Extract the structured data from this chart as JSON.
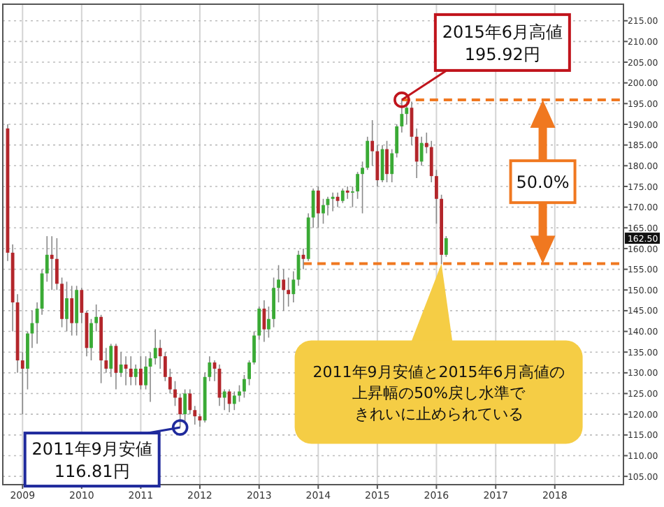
{
  "chart_data": {
    "type": "candlestick",
    "x": [
      "2008-10",
      "2008-11",
      "2008-12",
      "2009-01",
      "2009-02",
      "2009-03",
      "2009-04",
      "2009-05",
      "2009-06",
      "2009-07",
      "2009-08",
      "2009-09",
      "2009-10",
      "2009-11",
      "2009-12",
      "2010-01",
      "2010-02",
      "2010-03",
      "2010-04",
      "2010-05",
      "2010-06",
      "2010-07",
      "2010-08",
      "2010-09",
      "2010-10",
      "2010-11",
      "2010-12",
      "2011-01",
      "2011-02",
      "2011-03",
      "2011-04",
      "2011-05",
      "2011-06",
      "2011-07",
      "2011-08",
      "2011-09",
      "2011-10",
      "2011-11",
      "2011-12",
      "2012-01",
      "2012-02",
      "2012-03",
      "2012-04",
      "2012-05",
      "2012-06",
      "2012-07",
      "2012-08",
      "2012-09",
      "2012-10",
      "2012-11",
      "2012-12",
      "2013-01",
      "2013-02",
      "2013-03",
      "2013-04",
      "2013-05",
      "2013-06",
      "2013-07",
      "2013-08",
      "2013-09",
      "2013-10",
      "2013-11",
      "2013-12",
      "2014-01",
      "2014-02",
      "2014-03",
      "2014-04",
      "2014-05",
      "2014-06",
      "2014-07",
      "2014-08",
      "2014-09",
      "2014-10",
      "2014-11",
      "2014-12",
      "2015-01",
      "2015-02",
      "2015-03",
      "2015-04",
      "2015-05",
      "2015-06",
      "2015-07",
      "2015-08",
      "2015-09",
      "2015-10",
      "2015-11",
      "2015-12",
      "2016-01",
      "2016-02",
      "2016-03"
    ],
    "ohlc": [
      [
        189,
        190,
        157,
        159
      ],
      [
        159,
        161,
        140,
        147
      ],
      [
        147,
        149,
        130,
        133
      ],
      [
        133,
        135,
        120,
        131
      ],
      [
        131,
        140,
        126,
        139.5
      ],
      [
        139.5,
        145,
        136,
        142
      ],
      [
        142,
        147,
        137,
        145.5
      ],
      [
        145.5,
        155,
        144,
        154
      ],
      [
        154,
        163,
        152,
        158.5
      ],
      [
        158.5,
        163,
        150,
        157.5
      ],
      [
        157.5,
        162.5,
        150,
        151.5
      ],
      [
        151.5,
        153,
        141,
        143
      ],
      [
        143,
        152,
        140,
        148
      ],
      [
        148,
        151,
        139,
        142
      ],
      [
        142,
        151,
        139,
        150
      ],
      [
        150,
        150.5,
        142,
        144.5
      ],
      [
        144.5,
        145,
        134,
        136
      ],
      [
        136,
        143,
        133,
        142
      ],
      [
        142,
        146.5,
        140,
        143.5
      ],
      [
        143.5,
        144,
        127.5,
        133
      ],
      [
        133,
        136,
        130,
        131
      ],
      [
        131,
        137,
        129,
        136.5
      ],
      [
        136.5,
        137,
        126,
        130
      ],
      [
        130,
        135,
        129,
        132
      ],
      [
        132,
        134,
        127,
        131
      ],
      [
        131,
        134,
        127,
        129
      ],
      [
        129,
        132,
        127,
        131
      ],
      [
        131,
        134,
        126,
        127
      ],
      [
        127,
        134,
        126,
        131.5
      ],
      [
        131.5,
        135,
        123,
        133.5
      ],
      [
        133.5,
        140.5,
        132,
        136
      ],
      [
        136,
        138,
        131,
        134
      ],
      [
        134,
        135,
        128,
        129
      ],
      [
        129,
        131,
        125,
        126
      ],
      [
        126,
        128,
        122,
        124
      ],
      [
        124,
        125,
        116.81,
        120
      ],
      [
        120,
        126,
        118,
        125
      ],
      [
        125,
        126,
        120,
        121
      ],
      [
        121,
        122,
        117.5,
        119.5
      ],
      [
        119.5,
        120,
        117,
        118.5
      ],
      [
        118.5,
        130,
        118,
        129
      ],
      [
        129,
        134,
        128,
        132.5
      ],
      [
        132.5,
        133,
        128,
        131
      ],
      [
        131,
        132,
        122,
        124
      ],
      [
        124,
        126,
        121,
        125.5
      ],
      [
        125.5,
        126,
        120.5,
        122.5
      ],
      [
        122.5,
        125.5,
        121,
        124.5
      ],
      [
        124.5,
        127,
        123,
        125.5
      ],
      [
        125.5,
        129.5,
        124,
        128.5
      ],
      [
        128.5,
        133,
        127,
        132.5
      ],
      [
        132.5,
        140,
        132,
        139
      ],
      [
        139,
        146,
        138,
        145.5
      ],
      [
        145.5,
        147.5,
        137.5,
        140.5
      ],
      [
        140.5,
        146,
        138.5,
        143
      ],
      [
        143,
        153,
        141,
        150.5
      ],
      [
        150.5,
        156,
        147,
        152.5
      ],
      [
        152.5,
        155,
        145,
        150
      ],
      [
        150,
        153,
        146,
        149
      ],
      [
        149,
        154.5,
        147,
        152.5
      ],
      [
        152.5,
        159.5,
        151,
        158.5
      ],
      [
        158.5,
        160,
        155,
        157.5
      ],
      [
        157.5,
        168.5,
        157,
        167.5
      ],
      [
        167.5,
        174.5,
        165,
        174
      ],
      [
        174,
        175,
        165,
        168.5
      ],
      [
        168.5,
        172,
        166,
        170.5
      ],
      [
        170.5,
        172.5,
        168,
        172
      ],
      [
        172,
        173.5,
        169,
        172.5
      ],
      [
        172.5,
        173.5,
        170,
        171.5
      ],
      [
        171.5,
        174.5,
        171,
        174
      ],
      [
        174,
        175,
        172,
        173.5
      ],
      [
        173.5,
        175,
        170,
        173.8
      ],
      [
        173.8,
        178.5,
        172,
        178
      ],
      [
        178,
        181,
        168.5,
        179.5
      ],
      [
        179.5,
        187,
        179,
        186
      ],
      [
        186,
        191,
        180,
        183.5
      ],
      [
        183.5,
        185,
        175,
        176.5
      ],
      [
        176.5,
        185,
        176,
        184
      ],
      [
        184,
        186,
        176,
        178
      ],
      [
        178,
        184,
        176,
        183
      ],
      [
        183,
        190,
        182,
        189.5
      ],
      [
        189.5,
        195.92,
        188,
        192.5
      ],
      [
        192.5,
        195.5,
        190,
        194
      ],
      [
        194,
        195.5,
        185,
        187
      ],
      [
        187,
        189,
        177,
        181
      ],
      [
        181,
        187,
        180,
        185.5
      ],
      [
        185.5,
        188,
        183,
        184.5
      ],
      [
        184.5,
        186,
        176,
        177.5
      ],
      [
        177.5,
        179,
        166,
        172
      ],
      [
        172,
        173,
        156.2,
        158.5
      ],
      [
        158.5,
        163,
        158,
        162.5
      ]
    ],
    "series": [
      {
        "type": "line",
        "x": [
          "2015-06",
          "2019-03"
        ],
        "values": [
          195.92,
          195.92
        ],
        "color": "#f07820",
        "line_style": "dashed"
      },
      {
        "type": "line",
        "x": [
          "2013-10",
          "2019-03"
        ],
        "values": [
          156.37,
          156.37
        ],
        "color": "#f07820",
        "line_style": "dashed"
      }
    ],
    "xlim": [
      "2008-09",
      "2019-03"
    ],
    "xticks": [
      "2009",
      "2010",
      "2011",
      "2012",
      "2013",
      "2014",
      "2015",
      "2016",
      "2017",
      "2018"
    ],
    "ylim": [
      103,
      219
    ],
    "yticks": [
      {
        "value": 105,
        "label": "105.00"
      },
      {
        "value": 110,
        "label": "110.00"
      },
      {
        "value": 115,
        "label": "115.00"
      },
      {
        "value": 120,
        "label": "120.00"
      },
      {
        "value": 125,
        "label": "125.00"
      },
      {
        "value": 130,
        "label": "130.00"
      },
      {
        "value": 135,
        "label": "135.00"
      },
      {
        "value": 140,
        "label": "140.00"
      },
      {
        "value": 145,
        "label": "145.00"
      },
      {
        "value": 150,
        "label": "150.00"
      },
      {
        "value": 155,
        "label": "155.00"
      },
      {
        "value": 160,
        "label": "160.00"
      },
      {
        "value": 165,
        "label": "165.00"
      },
      {
        "value": 170,
        "label": "170.00"
      },
      {
        "value": 175,
        "label": "175.00"
      },
      {
        "value": 180,
        "label": "180.00"
      },
      {
        "value": 185,
        "label": "185.00"
      },
      {
        "value": 190,
        "label": "190.00"
      },
      {
        "value": 195,
        "label": "195.00"
      },
      {
        "value": 200,
        "label": "200.00"
      },
      {
        "value": 205,
        "label": "205.00"
      },
      {
        "value": 210,
        "label": "210.00"
      },
      {
        "value": 215,
        "label": "215.00"
      }
    ],
    "grid": true,
    "annotations": [
      {
        "text": "2015年6月高値\n195.92円",
        "x": "2015-06",
        "y": 195.92
      },
      {
        "text": "2011年9月安値\n116.81円",
        "x": "2011-09",
        "y": 116.81
      },
      "2011年9月安値と2015年6月高値の上昇幅の50%戻し水準できれいに止められている",
      "50.0%",
      "162.50"
    ]
  }
}
